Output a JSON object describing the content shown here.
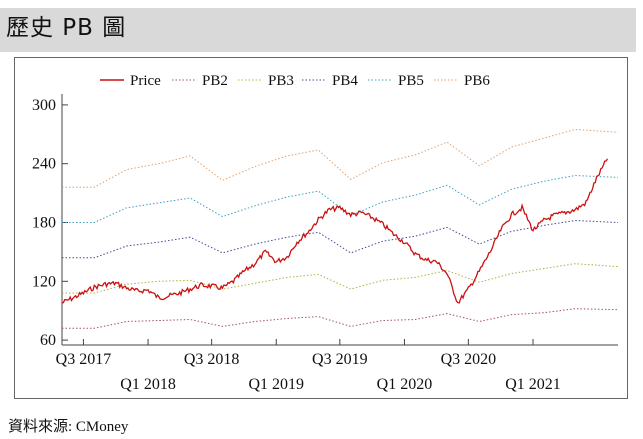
{
  "header": {
    "title": "歷史 PB 圖"
  },
  "source": {
    "text": "資料來源: CMoney"
  },
  "chart_data": {
    "type": "line",
    "title": "",
    "xlabel": "",
    "ylabel": "",
    "ylim": [
      55,
      305
    ],
    "yticks": [
      60,
      120,
      180,
      240,
      300
    ],
    "x_range": [
      "2017-05-01",
      "2021-08-31"
    ],
    "xticks": [
      {
        "label": "Q3 2017",
        "date": "2017-07-01",
        "row": 1
      },
      {
        "label": "Q1 2018",
        "date": "2018-01-01",
        "row": 2
      },
      {
        "label": "Q3 2018",
        "date": "2018-07-01",
        "row": 1
      },
      {
        "label": "Q1 2019",
        "date": "2019-01-01",
        "row": 2
      },
      {
        "label": "Q3 2019",
        "date": "2019-07-01",
        "row": 1
      },
      {
        "label": "Q1 2020",
        "date": "2020-01-01",
        "row": 2
      },
      {
        "label": "Q3 2020",
        "date": "2020-07-01",
        "row": 1
      },
      {
        "label": "Q1 2021",
        "date": "2021-01-01",
        "row": 2
      }
    ],
    "legend_position": "top",
    "grid": false,
    "series": [
      {
        "name": "Price",
        "color": "#cc1111",
        "style": "solid",
        "points": [
          [
            "2017-05-01",
            98
          ],
          [
            "2017-06-01",
            103
          ],
          [
            "2017-07-01",
            108
          ],
          [
            "2017-08-01",
            114
          ],
          [
            "2017-09-01",
            117
          ],
          [
            "2017-10-01",
            118
          ],
          [
            "2017-11-01",
            113
          ],
          [
            "2017-12-01",
            110
          ],
          [
            "2018-01-01",
            111
          ],
          [
            "2018-02-01",
            103
          ],
          [
            "2018-03-01",
            105
          ],
          [
            "2018-04-01",
            108
          ],
          [
            "2018-05-01",
            112
          ],
          [
            "2018-06-01",
            116
          ],
          [
            "2018-07-01",
            115
          ],
          [
            "2018-08-01",
            113
          ],
          [
            "2018-09-01",
            120
          ],
          [
            "2018-10-01",
            130
          ],
          [
            "2018-11-01",
            138
          ],
          [
            "2018-12-01",
            150
          ],
          [
            "2019-01-01",
            140
          ],
          [
            "2019-02-01",
            145
          ],
          [
            "2019-03-01",
            160
          ],
          [
            "2019-04-01",
            170
          ],
          [
            "2019-05-01",
            183
          ],
          [
            "2019-06-01",
            193
          ],
          [
            "2019-07-01",
            195
          ],
          [
            "2019-08-01",
            188
          ],
          [
            "2019-09-01",
            190
          ],
          [
            "2019-10-01",
            185
          ],
          [
            "2019-11-01",
            178
          ],
          [
            "2019-12-01",
            168
          ],
          [
            "2020-01-01",
            160
          ],
          [
            "2020-02-01",
            148
          ],
          [
            "2020-03-01",
            142
          ],
          [
            "2020-04-01",
            140
          ],
          [
            "2020-05-01",
            128
          ],
          [
            "2020-06-01",
            98
          ],
          [
            "2020-07-01",
            112
          ],
          [
            "2020-08-01",
            130
          ],
          [
            "2020-09-01",
            150
          ],
          [
            "2020-10-01",
            172
          ],
          [
            "2020-11-01",
            188
          ],
          [
            "2020-12-01",
            195
          ],
          [
            "2021-01-01",
            172
          ],
          [
            "2021-02-01",
            182
          ],
          [
            "2021-03-01",
            187
          ],
          [
            "2021-04-01",
            190
          ],
          [
            "2021-05-01",
            193
          ],
          [
            "2021-06-01",
            200
          ],
          [
            "2021-07-01",
            225
          ],
          [
            "2021-08-01",
            245
          ]
        ]
      },
      {
        "name": "PB2",
        "color": "#a05070",
        "style": "dotted",
        "points": [
          [
            "2017-05-01",
            72
          ],
          [
            "2017-08-01",
            72
          ],
          [
            "2017-11-01",
            79
          ],
          [
            "2018-02-01",
            80
          ],
          [
            "2018-05-01",
            81
          ],
          [
            "2018-08-01",
            74
          ],
          [
            "2018-11-01",
            79
          ],
          [
            "2019-02-01",
            82
          ],
          [
            "2019-05-01",
            84
          ],
          [
            "2019-08-01",
            74
          ],
          [
            "2019-11-01",
            80
          ],
          [
            "2020-02-01",
            81
          ],
          [
            "2020-05-01",
            87
          ],
          [
            "2020-08-01",
            79
          ],
          [
            "2020-11-01",
            86
          ],
          [
            "2021-02-01",
            88
          ],
          [
            "2021-05-01",
            92
          ],
          [
            "2021-08-31",
            91
          ]
        ]
      },
      {
        "name": "PB3",
        "color": "#b0b040",
        "style": "dotted",
        "points": [
          [
            "2017-05-01",
            108
          ],
          [
            "2017-08-01",
            108
          ],
          [
            "2017-11-01",
            117
          ],
          [
            "2018-02-01",
            120
          ],
          [
            "2018-05-01",
            121
          ],
          [
            "2018-08-01",
            112
          ],
          [
            "2018-11-01",
            118
          ],
          [
            "2019-02-01",
            124
          ],
          [
            "2019-05-01",
            127
          ],
          [
            "2019-08-01",
            112
          ],
          [
            "2019-11-01",
            121
          ],
          [
            "2020-02-01",
            124
          ],
          [
            "2020-05-01",
            131
          ],
          [
            "2020-08-01",
            119
          ],
          [
            "2020-11-01",
            128
          ],
          [
            "2021-02-01",
            133
          ],
          [
            "2021-05-01",
            138
          ],
          [
            "2021-08-31",
            135
          ]
        ]
      },
      {
        "name": "PB4",
        "color": "#404c90",
        "style": "dotted",
        "points": [
          [
            "2017-05-01",
            144
          ],
          [
            "2017-08-01",
            144
          ],
          [
            "2017-11-01",
            156
          ],
          [
            "2018-02-01",
            160
          ],
          [
            "2018-05-01",
            165
          ],
          [
            "2018-08-01",
            149
          ],
          [
            "2018-11-01",
            158
          ],
          [
            "2019-02-01",
            165
          ],
          [
            "2019-05-01",
            170
          ],
          [
            "2019-08-01",
            149
          ],
          [
            "2019-11-01",
            161
          ],
          [
            "2020-02-01",
            166
          ],
          [
            "2020-05-01",
            175
          ],
          [
            "2020-08-01",
            158
          ],
          [
            "2020-11-01",
            171
          ],
          [
            "2021-02-01",
            177
          ],
          [
            "2021-05-01",
            182
          ],
          [
            "2021-08-31",
            180
          ]
        ]
      },
      {
        "name": "PB5",
        "color": "#40a0c0",
        "style": "dotted",
        "points": [
          [
            "2017-05-01",
            180
          ],
          [
            "2017-08-01",
            180
          ],
          [
            "2017-11-01",
            195
          ],
          [
            "2018-02-01",
            200
          ],
          [
            "2018-05-01",
            205
          ],
          [
            "2018-08-01",
            186
          ],
          [
            "2018-11-01",
            197
          ],
          [
            "2019-02-01",
            206
          ],
          [
            "2019-05-01",
            212
          ],
          [
            "2019-08-01",
            187
          ],
          [
            "2019-11-01",
            201
          ],
          [
            "2020-02-01",
            208
          ],
          [
            "2020-05-01",
            218
          ],
          [
            "2020-08-01",
            198
          ],
          [
            "2020-11-01",
            214
          ],
          [
            "2021-02-01",
            222
          ],
          [
            "2021-05-01",
            228
          ],
          [
            "2021-08-31",
            226
          ]
        ]
      },
      {
        "name": "PB6",
        "color": "#e0a070",
        "style": "dotted",
        "points": [
          [
            "2017-05-01",
            216
          ],
          [
            "2017-08-01",
            216
          ],
          [
            "2017-11-01",
            234
          ],
          [
            "2018-02-01",
            240
          ],
          [
            "2018-05-01",
            248
          ],
          [
            "2018-08-01",
            223
          ],
          [
            "2018-11-01",
            237
          ],
          [
            "2019-02-01",
            248
          ],
          [
            "2019-05-01",
            254
          ],
          [
            "2019-08-01",
            224
          ],
          [
            "2019-11-01",
            241
          ],
          [
            "2020-02-01",
            249
          ],
          [
            "2020-05-01",
            262
          ],
          [
            "2020-08-01",
            238
          ],
          [
            "2020-11-01",
            257
          ],
          [
            "2021-02-01",
            266
          ],
          [
            "2021-05-01",
            275
          ],
          [
            "2021-08-31",
            272
          ]
        ]
      }
    ]
  }
}
